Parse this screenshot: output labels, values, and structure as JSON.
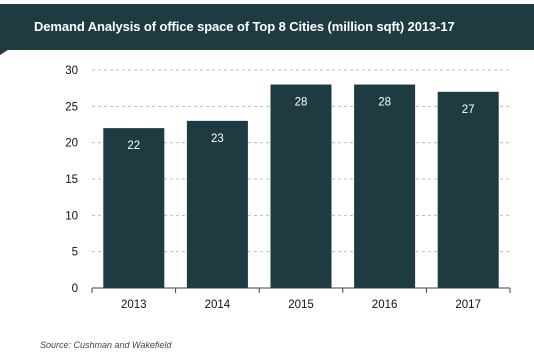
{
  "chart_data": {
    "type": "bar",
    "title": "Demand Analysis of office space of Top 8 Cities (million sqft) 2013-17",
    "categories": [
      "2013",
      "2014",
      "2015",
      "2016",
      "2017"
    ],
    "values": [
      22,
      23,
      28,
      28,
      27
    ],
    "data_labels": [
      "22",
      "23",
      "28",
      "28",
      "27"
    ],
    "yticks": [
      0,
      5,
      10,
      15,
      20,
      25,
      30
    ],
    "ylim": [
      0,
      30
    ],
    "xlabel": "",
    "ylabel": "",
    "grid": "horizontal-dashed",
    "legend": "none",
    "bar_color": "#1d3b41",
    "label_color": "#ffffff"
  },
  "header": {
    "background": "#1d3b41"
  },
  "source": "Source:  Cushman  and  Wakefield"
}
